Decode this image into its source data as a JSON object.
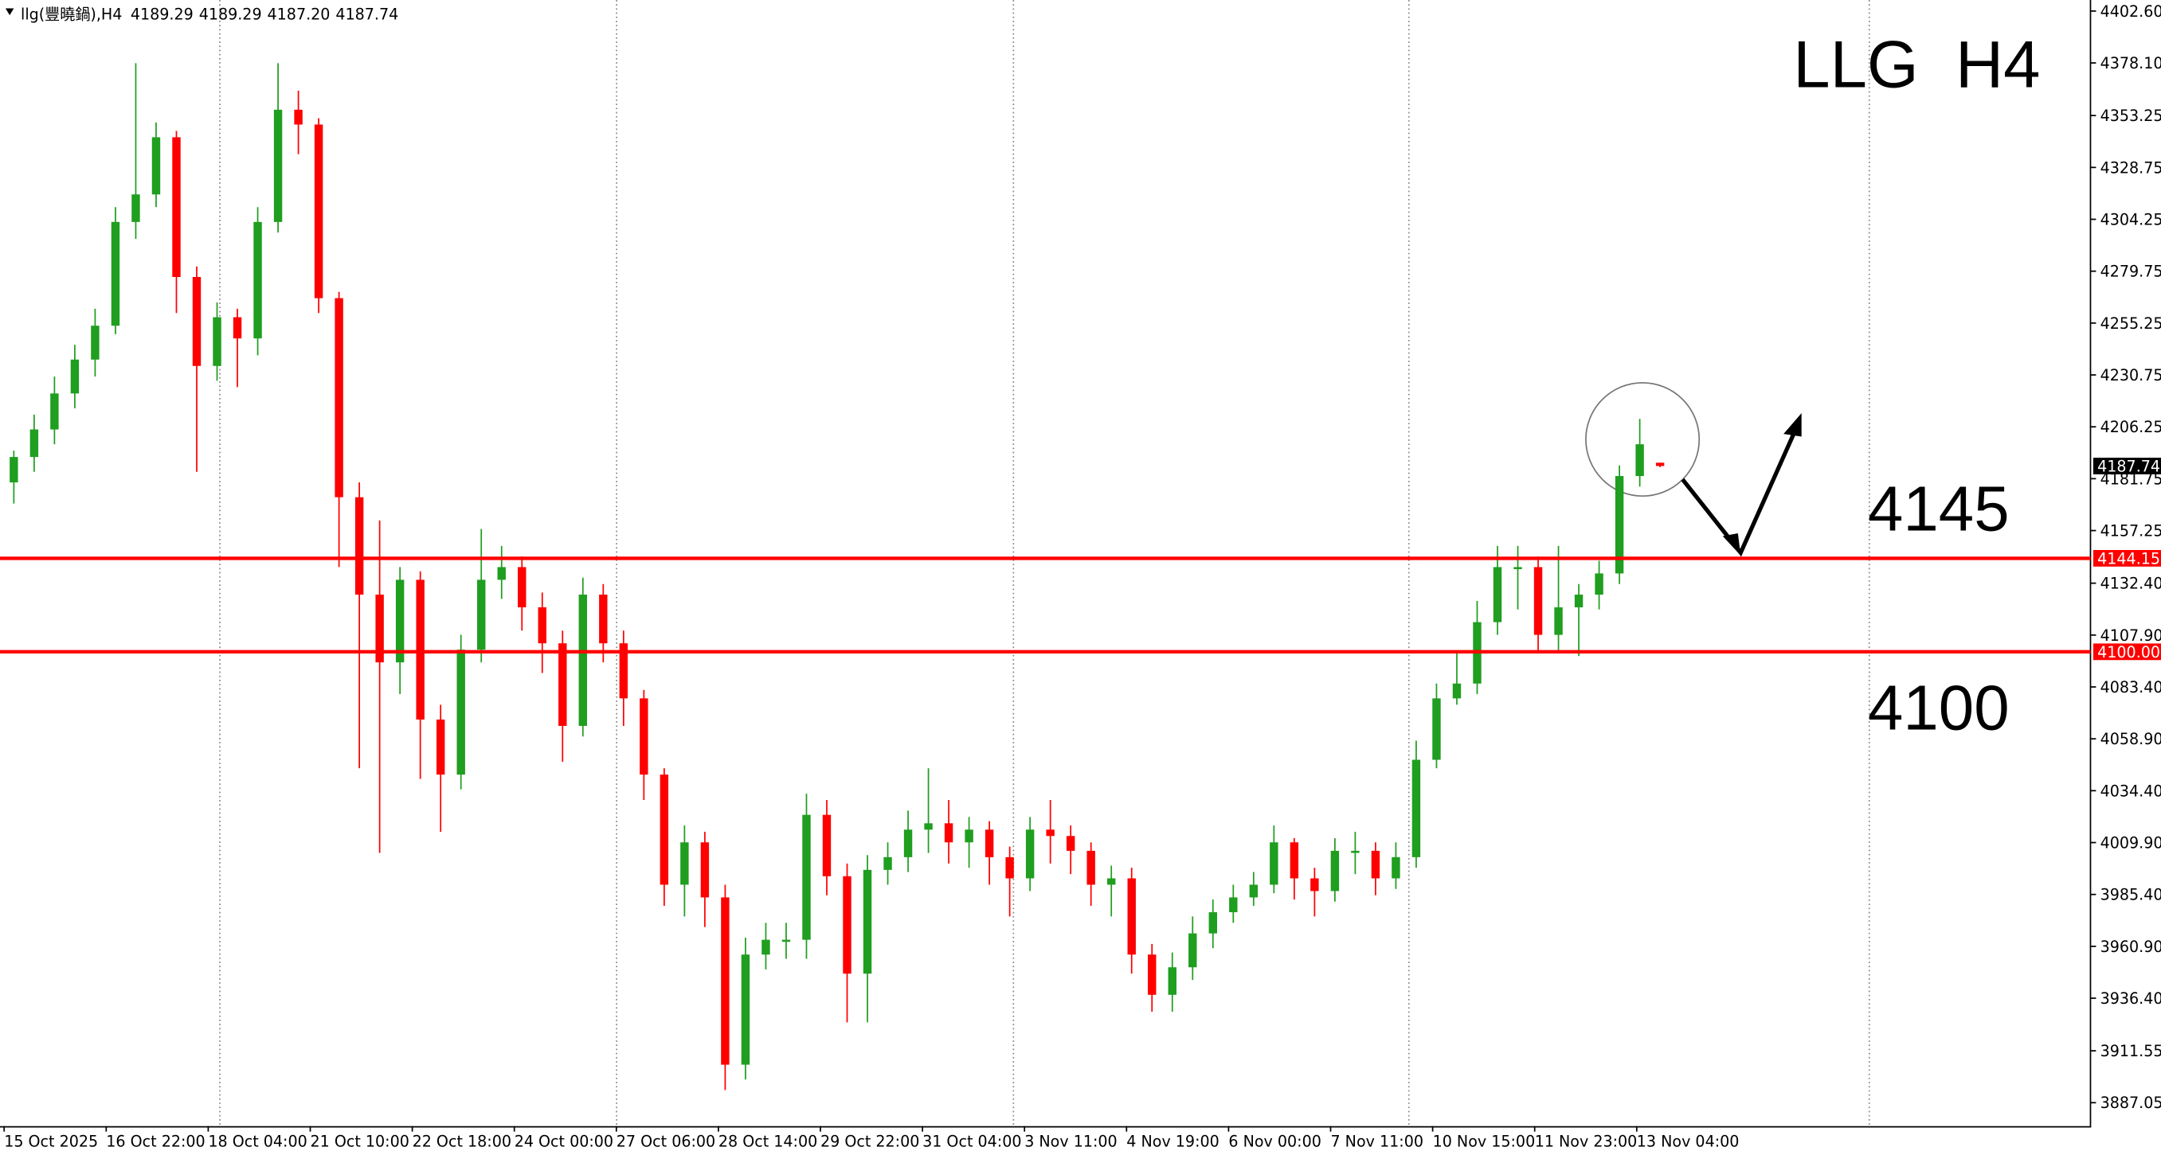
{
  "chart_data": {
    "type": "candlestick",
    "header": "llg(豐曉鍋),H4",
    "header_values": [
      "4189.29",
      "4189.29",
      "4187.20",
      "4187.74"
    ],
    "annotations": [
      "LLG  H4",
      "4145",
      "4100"
    ],
    "categories": [
      "15 Oct 2025",
      "16 Oct 22:00",
      "18 Oct 04:00",
      "21 Oct 10:00",
      "22 Oct 18:00",
      "24 Oct 00:00",
      "27 Oct 06:00",
      "28 Oct 14:00",
      "29 Oct 22:00",
      "31 Oct 04:00",
      "3 Nov 11:00",
      "4 Nov 19:00",
      "6 Nov 00:00",
      "7 Nov 11:00",
      "10 Nov 15:00",
      "11 Nov 23:00",
      "13 Nov 04:00"
    ],
    "up_color": "#1f9e1f",
    "down_color": "#ff0000",
    "level_color": "#ff0000",
    "open": [
      4180,
      4192,
      4205,
      4222,
      4238,
      4254,
      4303,
      4316,
      4343,
      4277,
      4235,
      4258,
      4248,
      4303,
      4356,
      4349,
      4267,
      4173,
      4127,
      4095,
      4134,
      4068,
      4042,
      4101,
      4134,
      4140,
      4121,
      4104,
      4065,
      4127,
      4104,
      4078,
      4042,
      3990,
      4010,
      3984,
      3905,
      3957,
      3964,
      3964,
      4023,
      3994,
      3948,
      3997,
      4003,
      4016,
      4019,
      4010,
      4016,
      4003,
      3993,
      4016,
      4013,
      4006,
      3990,
      3993,
      3957,
      3938,
      3951,
      3967,
      3977,
      3984,
      3990,
      4010,
      3993,
      3987,
      4006,
      4006,
      3993,
      4003,
      4049,
      4078,
      4085,
      4114,
      4140,
      4140,
      4108,
      4121,
      4127,
      4137,
      4183,
      4189.29
    ],
    "high": [
      4195,
      4212,
      4230,
      4245,
      4262,
      4310,
      4378,
      4350,
      4346,
      4282,
      4265,
      4262,
      4310,
      4378,
      4365,
      4352,
      4270,
      4180,
      4162,
      4140,
      4138,
      4075,
      4108,
      4158,
      4150,
      4145,
      4128,
      4110,
      4135,
      4132,
      4110,
      4082,
      4045,
      4018,
      4015,
      3990,
      3965,
      3972,
      3972,
      4033,
      4030,
      4000,
      4004,
      4010,
      4025,
      4045,
      4030,
      4022,
      4020,
      4008,
      4022,
      4030,
      4018,
      4010,
      3999,
      3998,
      3962,
      3958,
      3975,
      3983,
      3990,
      3996,
      4018,
      4012,
      3998,
      4012,
      4015,
      4010,
      4010,
      4058,
      4085,
      4100,
      4124,
      4150,
      4150,
      4145,
      4150,
      4132,
      4143,
      4188,
      4210,
      4189.29
    ],
    "low": [
      4170,
      4185,
      4198,
      4215,
      4230,
      4250,
      4295,
      4310,
      4260,
      4185,
      4228,
      4225,
      4240,
      4298,
      4335,
      4260,
      4140,
      4045,
      4005,
      4080,
      4040,
      4015,
      4035,
      4095,
      4125,
      4110,
      4090,
      4048,
      4060,
      4095,
      4065,
      4030,
      3980,
      3975,
      3970,
      3893,
      3898,
      3950,
      3955,
      3955,
      3985,
      3925,
      3925,
      3990,
      3996,
      4005,
      4000,
      3998,
      3990,
      3975,
      3987,
      4000,
      3995,
      3980,
      3975,
      3948,
      3930,
      3930,
      3945,
      3960,
      3972,
      3980,
      3986,
      3983,
      3975,
      3982,
      3995,
      3985,
      3988,
      3998,
      4045,
      4075,
      4080,
      4108,
      4120,
      4100,
      4100,
      4098,
      4120,
      4132,
      4178,
      4187.2
    ],
    "close": [
      4192,
      4205,
      4222,
      4238,
      4254,
      4303,
      4316,
      4343,
      4277,
      4235,
      4258,
      4248,
      4303,
      4356,
      4349,
      4267,
      4173,
      4127,
      4095,
      4134,
      4068,
      4042,
      4101,
      4134,
      4140,
      4121,
      4104,
      4065,
      4127,
      4104,
      4078,
      4042,
      3990,
      4010,
      3984,
      3905,
      3957,
      3964,
      3964,
      4023,
      3994,
      3948,
      3997,
      4003,
      4016,
      4019,
      4010,
      4016,
      4003,
      3993,
      4016,
      4013,
      4006,
      3990,
      3993,
      3957,
      3938,
      3951,
      3967,
      3977,
      3984,
      3990,
      4010,
      3993,
      3987,
      4006,
      4006,
      3993,
      4003,
      4049,
      4078,
      4085,
      4114,
      4140,
      4140,
      4108,
      4121,
      4127,
      4137,
      4183,
      4198,
      4187.74
    ],
    "levels": [
      {
        "value": 4144.15,
        "label": "4144.15"
      },
      {
        "value": 4100,
        "label": "4100.00"
      }
    ],
    "ylim": [
      3876.0,
      4407.8
    ],
    "yticks": [
      {
        "value": 4402.6,
        "label": "4402.60"
      },
      {
        "value": 4378.1,
        "label": "4378.10"
      },
      {
        "value": 4353.25,
        "label": "4353.25"
      },
      {
        "value": 4328.75,
        "label": "4328.75"
      },
      {
        "value": 4304.25,
        "label": "4304.25"
      },
      {
        "value": 4279.75,
        "label": "4279.75"
      },
      {
        "value": 4255.25,
        "label": "4255.25"
      },
      {
        "value": 4230.75,
        "label": "4230.75"
      },
      {
        "value": 4206.25,
        "label": "4206.25"
      },
      {
        "value": 4181.75,
        "label": "4181.75"
      },
      {
        "value": 4157.25,
        "label": "4157.25"
      },
      {
        "value": 4132.4,
        "label": "4132.40"
      },
      {
        "value": 4107.9,
        "label": "4107.90"
      },
      {
        "value": 4083.4,
        "label": "4083.40"
      },
      {
        "value": 4058.9,
        "label": "4058.90"
      },
      {
        "value": 4034.4,
        "label": "4034.40"
      },
      {
        "value": 4009.9,
        "label": "4009.90"
      },
      {
        "value": 3985.4,
        "label": "3985.40"
      },
      {
        "value": 3960.9,
        "label": "3960.90"
      },
      {
        "value": 3936.4,
        "label": "3936.40"
      },
      {
        "value": 3911.55,
        "label": "3911.55"
      },
      {
        "value": 3887.05,
        "label": "3887.05"
      }
    ]
  }
}
